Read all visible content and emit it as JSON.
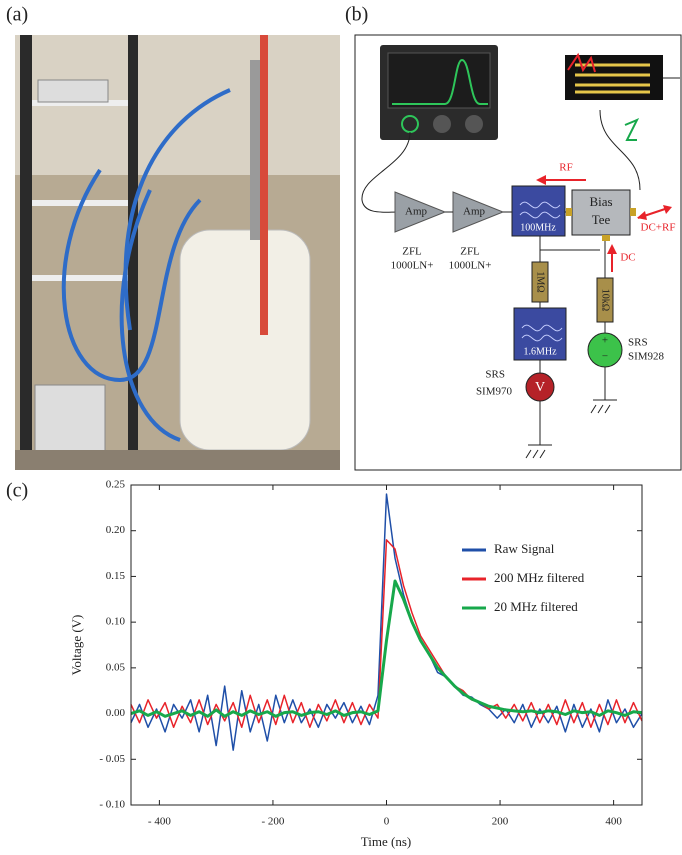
{
  "panel_labels": [
    "(a)",
    "(b)",
    "(c)"
  ],
  "diagram": {
    "amp_labels": [
      "Amp",
      "Amp"
    ],
    "amp_models": [
      [
        "ZFL",
        "1000LN+"
      ],
      [
        "ZFL",
        "1000LN+"
      ]
    ],
    "filter_high": "100MHz",
    "bias_tee": [
      "Bias",
      "Tee"
    ],
    "rf": "RF",
    "dc_rf": "DC+RF",
    "dc": "DC",
    "resistor_left": "1MΩ",
    "resistor_right": "10kΩ",
    "filter_low": "1.6MHz",
    "voltmeter_symbol": "V",
    "voltmeter_name": [
      "SRS",
      "SIM970"
    ],
    "source_plus": "+",
    "source_minus": "−",
    "source_name": [
      "SRS",
      "SIM928"
    ]
  },
  "chart_data": {
    "type": "line",
    "xlabel": "Time (ns)",
    "ylabel": "Voltage (V)",
    "xlim": [
      -450,
      450
    ],
    "xticks": [
      {
        "value": -400,
        "label": "- 400"
      },
      {
        "value": -200,
        "label": "- 200"
      },
      0,
      200,
      400
    ],
    "ylim": [
      -0.1,
      0.25
    ],
    "yticks": [
      {
        "value": -0.1,
        "label": "- 0.10"
      },
      {
        "value": -0.05,
        "label": "- 0.05"
      },
      {
        "value": 0,
        "label": "0.00"
      },
      0.05,
      {
        "value": 0.1,
        "label": "0.10"
      },
      0.15,
      {
        "value": 0.2,
        "label": "0.20"
      },
      0.25
    ],
    "legend": "upper right",
    "x": [
      -450,
      -435,
      -420,
      -405,
      -390,
      -375,
      -360,
      -345,
      -330,
      -315,
      -300,
      -285,
      -270,
      -255,
      -240,
      -225,
      -210,
      -195,
      -180,
      -165,
      -150,
      -135,
      -120,
      -105,
      -90,
      -75,
      -60,
      -45,
      -30,
      -15,
      0,
      15,
      30,
      45,
      60,
      75,
      90,
      105,
      120,
      135,
      150,
      165,
      180,
      195,
      210,
      225,
      240,
      255,
      270,
      285,
      300,
      315,
      330,
      345,
      360,
      375,
      390,
      405,
      420,
      435,
      450
    ],
    "series": [
      {
        "name": "Raw Signal",
        "color": "#1f4fa8",
        "values": [
          -0.01,
          0.01,
          -0.015,
          0.005,
          -0.02,
          0.01,
          -0.005,
          0.015,
          -0.02,
          0.02,
          -0.035,
          0.03,
          -0.04,
          0.025,
          -0.02,
          0.01,
          -0.03,
          0.02,
          -0.01,
          0.015,
          -0.01,
          0.005,
          -0.015,
          0.01,
          -0.005,
          0.012,
          -0.01,
          0.008,
          -0.012,
          0.02,
          0.24,
          0.17,
          0.13,
          0.1,
          0.08,
          0.065,
          0.045,
          0.04,
          0.03,
          0.02,
          0.018,
          0.01,
          0.005,
          -0.005,
          0.005,
          -0.01,
          0.01,
          -0.015,
          0.005,
          -0.01,
          0.008,
          -0.02,
          0.01,
          -0.015,
          0.005,
          -0.02,
          0.015,
          -0.01,
          0.005,
          -0.015,
          0
        ]
      },
      {
        "name": "200 MHz filtered",
        "color": "#e8232a",
        "values": [
          0.01,
          -0.01,
          0.015,
          -0.005,
          0.012,
          -0.015,
          0.008,
          -0.01,
          0.015,
          -0.012,
          0.01,
          -0.008,
          0.012,
          -0.015,
          0.02,
          -0.01,
          0.015,
          -0.012,
          0.02,
          -0.01,
          0.012,
          -0.015,
          0.01,
          -0.008,
          0.015,
          -0.01,
          0.012,
          -0.012,
          0.01,
          -0.005,
          0.19,
          0.18,
          0.14,
          0.11,
          0.085,
          0.07,
          0.055,
          0.04,
          0.03,
          0.025,
          0.015,
          0.012,
          0.005,
          0.01,
          -0.005,
          0.01,
          -0.008,
          0.012,
          -0.01,
          0.01,
          -0.012,
          0.015,
          -0.01,
          0.012,
          -0.015,
          0.01,
          -0.012,
          0.015,
          -0.01,
          0.012,
          -0.008
        ]
      },
      {
        "name": "20 MHz filtered",
        "color": "#17a84b",
        "values": [
          0,
          0.003,
          -0.002,
          0.002,
          -0.003,
          0,
          0.003,
          -0.002,
          0.002,
          -0.003,
          0.004,
          -0.003,
          0.002,
          -0.002,
          0.003,
          -0.001,
          0.002,
          -0.003,
          0.001,
          0.002,
          -0.002,
          0.001,
          0.002,
          -0.001,
          0.003,
          -0.002,
          0.001,
          0.002,
          -0.001,
          0.003,
          0.08,
          0.145,
          0.125,
          0.1,
          0.08,
          0.065,
          0.05,
          0.04,
          0.03,
          0.022,
          0.016,
          0.012,
          0.008,
          0.006,
          0.004,
          0.003,
          0.002,
          0.003,
          0.001,
          0.003,
          0.002,
          -0.001,
          0.003,
          0.001,
          0.002,
          -0.002,
          0.003,
          0.001,
          -0.002,
          0.002,
          0.001
        ]
      }
    ]
  }
}
